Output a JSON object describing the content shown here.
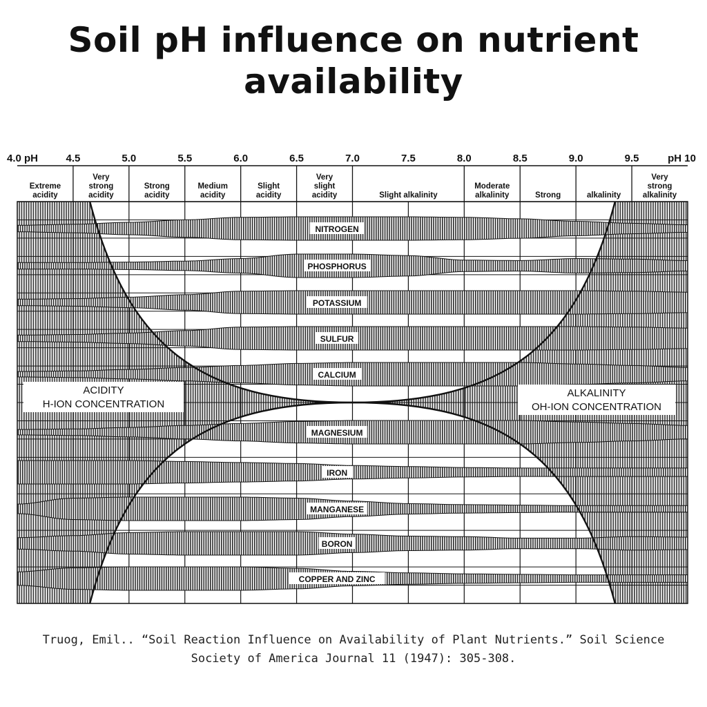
{
  "title": "Soil pH influence on nutrient availability",
  "citation": "Truog, Emil.. “Soil Reaction Influence on Availability of Plant Nutrients.” Soil Science Society of America Journal 11 (1947): 305-308.",
  "colors": {
    "ink": "#111111",
    "band": "#2a2a2a",
    "paper": "#ffffff"
  },
  "chart_data": {
    "type": "area",
    "title": "Soil pH influence on nutrient availability",
    "x_range": [
      4.0,
      10.0
    ],
    "ticks": [
      {
        "ph": 4.0,
        "label": "4.0 pH"
      },
      {
        "ph": 4.5,
        "label": "4.5"
      },
      {
        "ph": 5.0,
        "label": "5.0"
      },
      {
        "ph": 5.5,
        "label": "5.5"
      },
      {
        "ph": 6.0,
        "label": "6.0"
      },
      {
        "ph": 6.5,
        "label": "6.5"
      },
      {
        "ph": 7.0,
        "label": "7.0"
      },
      {
        "ph": 7.5,
        "label": "7.5"
      },
      {
        "ph": 8.0,
        "label": "8.0"
      },
      {
        "ph": 8.5,
        "label": "8.5"
      },
      {
        "ph": 9.0,
        "label": "9.0"
      },
      {
        "ph": 9.5,
        "label": "9.5"
      },
      {
        "ph": 10.0,
        "label": "pH 10"
      }
    ],
    "reaction_classes": [
      {
        "from": 4.0,
        "to": 4.5,
        "lines": [
          "Extreme",
          "acidity"
        ]
      },
      {
        "from": 4.5,
        "to": 5.0,
        "lines": [
          "Very",
          "strong",
          "acidity"
        ]
      },
      {
        "from": 5.0,
        "to": 5.5,
        "lines": [
          "Strong",
          "acidity"
        ]
      },
      {
        "from": 5.5,
        "to": 6.0,
        "lines": [
          "Medium",
          "acidity"
        ]
      },
      {
        "from": 6.0,
        "to": 6.5,
        "lines": [
          "Slight",
          "acidity"
        ]
      },
      {
        "from": 6.5,
        "to": 7.0,
        "lines": [
          "Very",
          "slight",
          "acidity"
        ]
      },
      {
        "from": 7.0,
        "to": 8.0,
        "lines": [
          "Slight  alkalinity"
        ]
      },
      {
        "from": 8.0,
        "to": 8.5,
        "lines": [
          "Moderate",
          "alkalinity"
        ]
      },
      {
        "from": 8.5,
        "to": 9.0,
        "lines": [
          "Strong"
        ]
      },
      {
        "from": 9.0,
        "to": 9.5,
        "lines": [
          "alkalinity"
        ]
      },
      {
        "from": 9.5,
        "to": 10.0,
        "lines": [
          "Very",
          "strong",
          "alkalinity"
        ]
      }
    ],
    "regions": {
      "acidity": [
        "ACIDITY",
        "H-ION  CONCENTRATION"
      ],
      "alkalinity": [
        "ALKALINITY",
        "OH-ION  CONCENTRATION"
      ]
    },
    "nutrient_sample_ph": [
      4.0,
      4.5,
      5.0,
      5.5,
      6.0,
      6.5,
      7.0,
      7.5,
      8.0,
      8.5,
      9.0,
      9.5,
      10.0
    ],
    "nutrients": [
      {
        "name": "NITROGEN",
        "availability": [
          0.15,
          0.25,
          0.45,
          0.7,
          0.95,
          1.0,
          1.0,
          1.0,
          0.95,
          0.8,
          0.55,
          0.35,
          0.2
        ]
      },
      {
        "name": "PHOSPHORUS",
        "availability": [
          0.15,
          0.15,
          0.2,
          0.3,
          0.55,
          1.0,
          1.0,
          0.85,
          0.4,
          0.35,
          0.55,
          0.5,
          0.35
        ]
      },
      {
        "name": "POTASSIUM",
        "availability": [
          0.15,
          0.2,
          0.35,
          0.6,
          0.95,
          1.0,
          1.0,
          1.0,
          1.0,
          1.0,
          1.0,
          0.95,
          0.85
        ]
      },
      {
        "name": "SULFUR",
        "availability": [
          0.15,
          0.2,
          0.35,
          0.6,
          0.95,
          1.0,
          1.0,
          1.0,
          1.0,
          1.0,
          1.0,
          0.95,
          0.85
        ]
      },
      {
        "name": "CALCIUM",
        "availability": [
          0.1,
          0.15,
          0.3,
          0.5,
          0.7,
          0.9,
          1.0,
          1.0,
          1.0,
          1.0,
          0.85,
          0.7,
          0.5
        ]
      },
      {
        "name": "MAGNESIUM",
        "availability": [
          0.1,
          0.15,
          0.3,
          0.5,
          0.7,
          0.9,
          1.0,
          1.0,
          1.0,
          1.0,
          0.85,
          0.7,
          0.5
        ]
      },
      {
        "name": "IRON",
        "availability": [
          1.0,
          1.0,
          1.0,
          0.9,
          0.8,
          0.7,
          0.5,
          0.4,
          0.3,
          0.25,
          0.25,
          0.25,
          0.25
        ]
      },
      {
        "name": "MANGANESE",
        "availability": [
          0.3,
          0.9,
          1.0,
          1.0,
          1.0,
          0.9,
          0.6,
          0.35,
          0.25,
          0.2,
          0.15,
          0.15,
          0.15
        ]
      },
      {
        "name": "BORON",
        "availability": [
          0.4,
          0.6,
          0.9,
          1.0,
          1.0,
          1.0,
          0.75,
          0.55,
          0.5,
          0.35,
          0.35,
          0.5,
          0.45
        ]
      },
      {
        "name": "COPPER AND ZINC",
        "availability": [
          0.5,
          0.9,
          1.0,
          1.0,
          1.0,
          0.85,
          0.55,
          0.4,
          0.3,
          0.25,
          0.2,
          0.2,
          0.2
        ]
      }
    ]
  }
}
